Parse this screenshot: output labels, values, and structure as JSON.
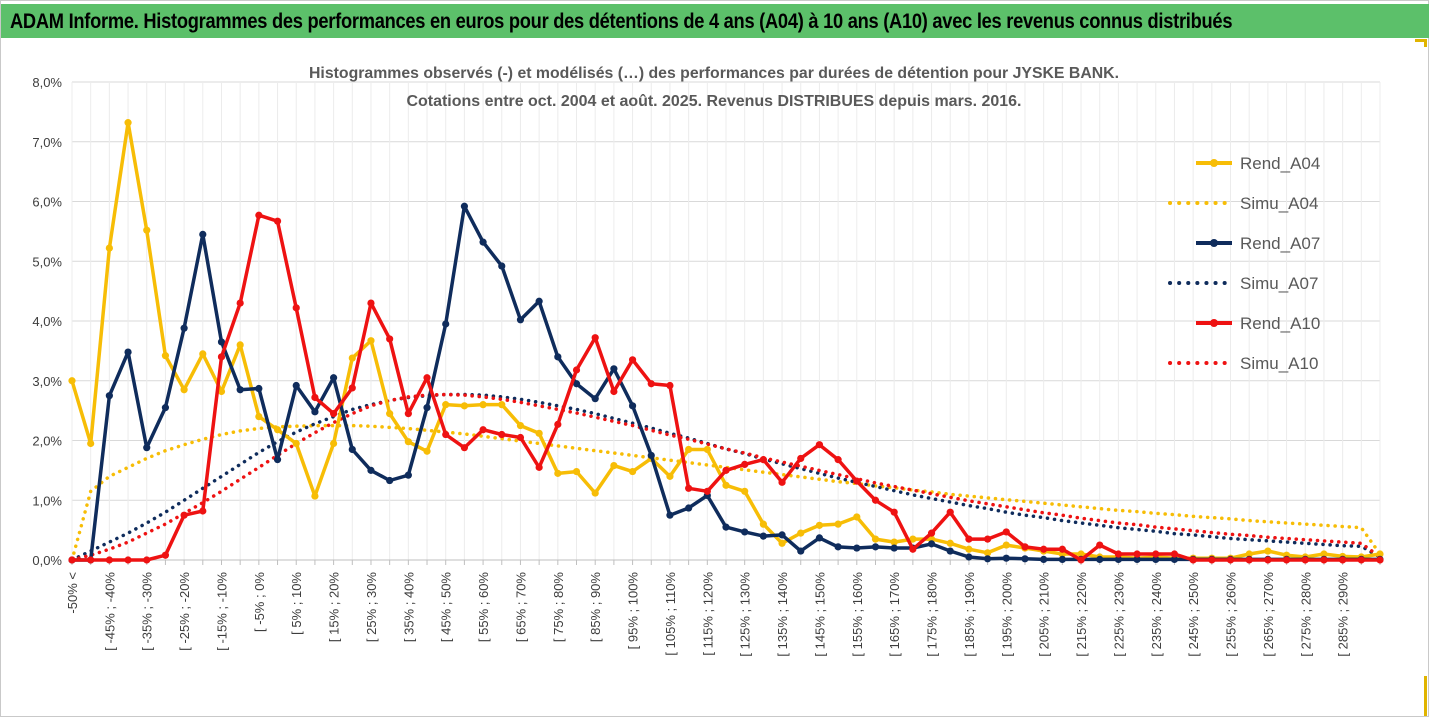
{
  "banner_title": "ADAM Informe. Histogrammes des performances en euros pour des détentions de 4 ans (A04) à 10 ans (A10) avec les revenus connus distribués",
  "colors": {
    "banner_bg": "#5cc06a",
    "a04": "#f7bd06",
    "a07": "#0f2c5c",
    "a10": "#ee1212",
    "grid": "#d9d9d9",
    "tick_text": "#3d3d3d",
    "title_text": "#595959"
  },
  "chart_data": {
    "type": "line",
    "title_line1": "Histogrammes observés (-) et modélisés (…) des performances par durées de détention pour JYSKE BANK.",
    "title_line2": "Cotations entre oct. 2004 et août. 2025. Revenus DISTRIBUES depuis mars. 2016.",
    "ylim": [
      0,
      8
    ],
    "y_ticks": [
      "0,0%",
      "1,0%",
      "2,0%",
      "3,0%",
      "4,0%",
      "5,0%",
      "6,0%",
      "7,0%",
      "8,0%"
    ],
    "x_ticks": [
      "-50% <",
      "[ -45% ; -40%",
      "[ -35% ; -30%",
      "[ -25% ; -20%",
      "[ -15% ; -10%",
      "[ -5% ; 0%",
      "[ 5% ; 10%",
      "[ 15% ; 20%",
      "[ 25% ; 30%",
      "[ 35% ; 40%",
      "[ 45% ; 50%",
      "[ 55% ; 60%",
      "[ 65% ; 70%",
      "[ 75% ; 80%",
      "[ 85% ; 90%",
      "[ 95% ; 100%",
      "[ 105% ; 110%",
      "[ 115% ; 120%",
      "[ 125% ; 130%",
      "[ 135% ; 140%",
      "[ 145% ; 150%",
      "[ 155% ; 160%",
      "[ 165% ; 170%",
      "[ 175% ; 180%",
      "[ 185% ; 190%",
      "[ 195% ; 200%",
      "[ 205% ; 210%",
      "[ 215% ; 220%",
      "[ 225% ; 230%",
      "[ 235% ; 240%",
      "[ 245% ; 250%",
      "[ 255% ; 260%",
      "[ 265% ; 270%",
      "[ 275% ; 280%",
      "[ 285% ; 290%"
    ],
    "legend_position": "right",
    "series": [
      {
        "name": "Rend_A04",
        "style": "solid",
        "color": "#f7bd06",
        "values": [
          3.0,
          1.95,
          5.22,
          7.32,
          5.52,
          3.42,
          2.85,
          3.45,
          2.82,
          3.6,
          2.4,
          2.18,
          1.95,
          1.07,
          1.95,
          3.38,
          3.67,
          2.45,
          1.98,
          1.82,
          2.6,
          2.58,
          2.6,
          2.6,
          2.25,
          2.12,
          1.45,
          1.48,
          1.12,
          1.58,
          1.48,
          1.7,
          1.4,
          1.85,
          1.85,
          1.25,
          1.15,
          0.6,
          0.28,
          0.45,
          0.58,
          0.6,
          0.72,
          0.35,
          0.3,
          0.35,
          0.35,
          0.28,
          0.18,
          0.12,
          0.25,
          0.2,
          0.15,
          0.1,
          0.1,
          0.05,
          0.05,
          0.03,
          0.05,
          0.03,
          0.03,
          0.03,
          0.03,
          0.1,
          0.15,
          0.08,
          0.05,
          0.1,
          0.06,
          0.05,
          0.1
        ]
      },
      {
        "name": "Simu_A04",
        "style": "dotted",
        "color": "#f7bd06",
        "values": [
          0.0,
          1.15,
          1.4,
          1.55,
          1.7,
          1.83,
          1.93,
          2.02,
          2.1,
          2.16,
          2.2,
          2.23,
          2.24,
          2.25,
          2.25,
          2.25,
          2.24,
          2.22,
          2.2,
          2.17,
          2.14,
          2.11,
          2.07,
          2.03,
          1.99,
          1.95,
          1.91,
          1.87,
          1.83,
          1.79,
          1.75,
          1.71,
          1.67,
          1.63,
          1.59,
          1.55,
          1.51,
          1.47,
          1.43,
          1.39,
          1.35,
          1.31,
          1.28,
          1.24,
          1.21,
          1.17,
          1.14,
          1.1,
          1.07,
          1.04,
          1.01,
          0.98,
          0.95,
          0.92,
          0.89,
          0.86,
          0.83,
          0.81,
          0.78,
          0.76,
          0.73,
          0.71,
          0.69,
          0.66,
          0.64,
          0.62,
          0.6,
          0.58,
          0.56,
          0.54,
          0.1
        ]
      },
      {
        "name": "Rend_A07",
        "style": "solid",
        "color": "#0f2c5c",
        "values": [
          0.0,
          0.0,
          2.75,
          3.48,
          1.88,
          2.55,
          3.88,
          5.45,
          3.65,
          2.85,
          2.87,
          1.68,
          2.92,
          2.48,
          3.05,
          1.85,
          1.5,
          1.33,
          1.42,
          2.55,
          3.95,
          5.92,
          5.32,
          4.92,
          4.02,
          4.33,
          3.4,
          2.95,
          2.7,
          3.2,
          2.58,
          1.75,
          0.75,
          0.87,
          1.08,
          0.55,
          0.47,
          0.4,
          0.42,
          0.15,
          0.37,
          0.22,
          0.2,
          0.22,
          0.2,
          0.2,
          0.27,
          0.15,
          0.05,
          0.02,
          0.03,
          0.02,
          0.01,
          0.01,
          0.01,
          0.01,
          0.01,
          0.01,
          0.01,
          0.01,
          0.01,
          0.01,
          0.01,
          0.01,
          0.01,
          0.01,
          0.01,
          0.01,
          0.01,
          0.01,
          0.01
        ]
      },
      {
        "name": "Simu_A07",
        "style": "dotted",
        "color": "#0f2c5c",
        "values": [
          0.0,
          0.15,
          0.3,
          0.45,
          0.62,
          0.8,
          1.0,
          1.2,
          1.4,
          1.6,
          1.8,
          1.98,
          2.14,
          2.28,
          2.4,
          2.52,
          2.6,
          2.67,
          2.72,
          2.75,
          2.77,
          2.77,
          2.76,
          2.73,
          2.69,
          2.64,
          2.58,
          2.52,
          2.45,
          2.37,
          2.29,
          2.21,
          2.12,
          2.04,
          1.95,
          1.86,
          1.78,
          1.69,
          1.61,
          1.53,
          1.45,
          1.37,
          1.3,
          1.23,
          1.16,
          1.09,
          1.03,
          0.97,
          0.91,
          0.86,
          0.8,
          0.75,
          0.71,
          0.66,
          0.62,
          0.58,
          0.54,
          0.51,
          0.48,
          0.44,
          0.42,
          0.39,
          0.36,
          0.34,
          0.32,
          0.3,
          0.28,
          0.26,
          0.24,
          0.23,
          0.05
        ]
      },
      {
        "name": "Rend_A10",
        "style": "solid",
        "color": "#ee1212",
        "values": [
          0.0,
          0.0,
          0.0,
          0.0,
          0.0,
          0.08,
          0.75,
          0.82,
          3.4,
          4.3,
          5.77,
          5.67,
          4.22,
          2.72,
          2.45,
          2.88,
          4.3,
          3.7,
          2.45,
          3.05,
          2.1,
          1.88,
          2.18,
          2.1,
          2.05,
          1.55,
          2.27,
          3.18,
          3.72,
          2.82,
          3.35,
          2.95,
          2.92,
          1.2,
          1.15,
          1.5,
          1.6,
          1.68,
          1.3,
          1.7,
          1.93,
          1.68,
          1.32,
          1.0,
          0.8,
          0.18,
          0.45,
          0.8,
          0.35,
          0.35,
          0.47,
          0.22,
          0.18,
          0.18,
          0.0,
          0.25,
          0.1,
          0.1,
          0.1,
          0.1,
          0.0,
          0.0,
          0.0,
          0.0,
          0.0,
          0.0,
          0.0,
          0.0,
          0.0,
          0.0,
          0.0
        ]
      },
      {
        "name": "Simu_A10",
        "style": "dotted",
        "color": "#ee1212",
        "values": [
          0.0,
          0.08,
          0.18,
          0.3,
          0.45,
          0.6,
          0.78,
          0.96,
          1.15,
          1.35,
          1.55,
          1.75,
          1.95,
          2.13,
          2.3,
          2.45,
          2.58,
          2.67,
          2.73,
          2.76,
          2.77,
          2.76,
          2.73,
          2.69,
          2.64,
          2.58,
          2.52,
          2.46,
          2.39,
          2.32,
          2.25,
          2.17,
          2.09,
          2.02,
          1.94,
          1.86,
          1.79,
          1.71,
          1.64,
          1.57,
          1.5,
          1.43,
          1.36,
          1.29,
          1.23,
          1.17,
          1.11,
          1.05,
          0.99,
          0.94,
          0.89,
          0.84,
          0.79,
          0.75,
          0.7,
          0.66,
          0.62,
          0.59,
          0.55,
          0.52,
          0.49,
          0.46,
          0.43,
          0.41,
          0.38,
          0.36,
          0.34,
          0.32,
          0.3,
          0.28,
          0.05
        ]
      }
    ]
  }
}
